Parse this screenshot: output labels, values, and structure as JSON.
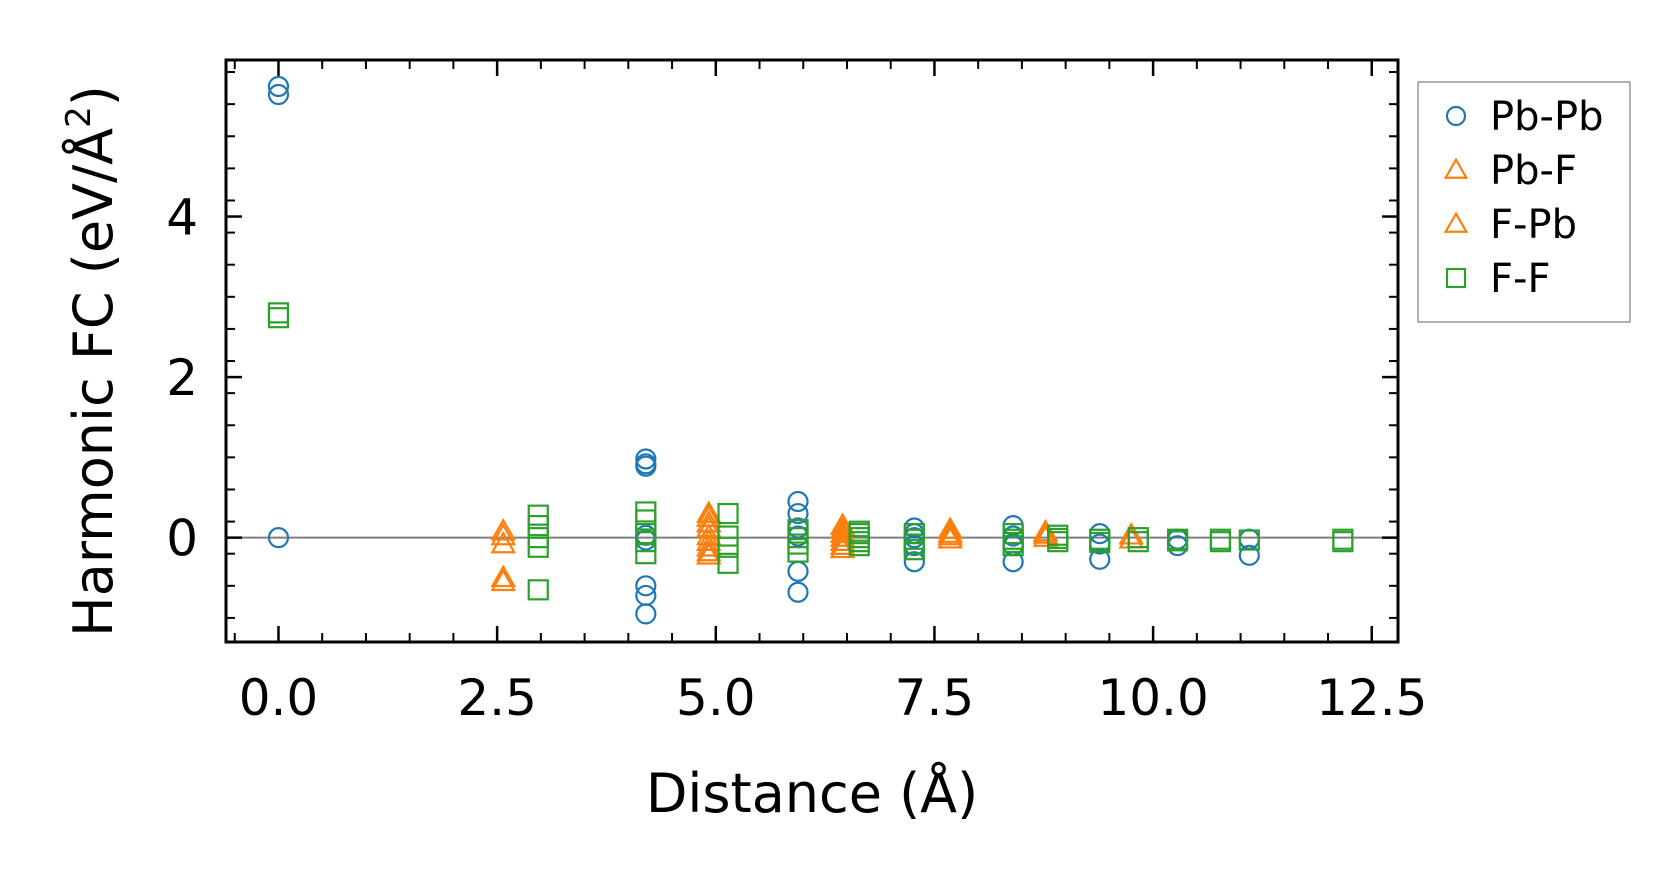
{
  "chart_data": {
    "type": "scatter",
    "title": "",
    "xlabel": "Distance (Å)",
    "ylabel_main": "Harmonic FC (eV/Å",
    "ylabel_sup": "2",
    "ylabel_end": ")",
    "xlim": [
      -0.6,
      12.8
    ],
    "ylim": [
      -1.3,
      5.95
    ],
    "xticks": [
      0.0,
      2.5,
      5.0,
      7.5,
      10.0,
      12.5
    ],
    "xtick_labels": [
      "0.0",
      "2.5",
      "5.0",
      "7.5",
      "10.0",
      "12.5"
    ],
    "yticks": [
      0,
      2,
      4
    ],
    "ytick_labels": [
      "0",
      "2",
      "4"
    ],
    "zero_line": true,
    "legend_position": "outside-right-top",
    "series": [
      {
        "name": "Pb-Pb",
        "marker": "circle",
        "color": "#1f77b4",
        "points": [
          [
            0.0,
            5.62
          ],
          [
            0.0,
            5.52
          ],
          [
            0.0,
            0.0
          ],
          [
            4.2,
            0.98
          ],
          [
            4.2,
            0.92
          ],
          [
            4.2,
            0.89
          ],
          [
            4.2,
            0.03
          ],
          [
            4.2,
            -0.03
          ],
          [
            4.2,
            -0.6
          ],
          [
            4.2,
            -0.72
          ],
          [
            4.2,
            -0.95
          ],
          [
            5.94,
            0.45
          ],
          [
            5.94,
            0.3
          ],
          [
            5.94,
            0.12
          ],
          [
            5.94,
            0.02
          ],
          [
            5.94,
            -0.42
          ],
          [
            5.94,
            -0.68
          ],
          [
            7.27,
            0.12
          ],
          [
            7.27,
            0.05
          ],
          [
            7.27,
            0.0
          ],
          [
            7.27,
            -0.1
          ],
          [
            7.27,
            -0.3
          ],
          [
            8.4,
            0.15
          ],
          [
            8.4,
            0.02
          ],
          [
            8.4,
            -0.1
          ],
          [
            8.4,
            -0.3
          ],
          [
            9.39,
            0.05
          ],
          [
            9.39,
            -0.08
          ],
          [
            9.39,
            -0.27
          ],
          [
            10.28,
            -0.02
          ],
          [
            10.28,
            -0.1
          ],
          [
            11.1,
            -0.02
          ],
          [
            11.1,
            -0.22
          ]
        ]
      },
      {
        "name": "Pb-F",
        "marker": "triangle",
        "color": "#ff7f0e",
        "points": [
          [
            2.57,
            0.08
          ],
          [
            2.57,
            -0.08
          ],
          [
            2.57,
            -0.5
          ],
          [
            4.92,
            0.25
          ],
          [
            4.92,
            0.12
          ],
          [
            4.92,
            0.02
          ],
          [
            4.92,
            -0.12
          ],
          [
            4.92,
            -0.22
          ],
          [
            6.45,
            0.15
          ],
          [
            6.45,
            0.05
          ],
          [
            6.45,
            -0.05
          ],
          [
            6.45,
            -0.14
          ],
          [
            7.68,
            0.1
          ],
          [
            7.68,
            0.02
          ],
          [
            8.77,
            0.07
          ],
          [
            8.77,
            0.0
          ],
          [
            9.75,
            0.03
          ]
        ]
      },
      {
        "name": "F-Pb",
        "marker": "triangle",
        "color": "#ff7f0e",
        "points": [
          [
            2.57,
            0.02
          ],
          [
            2.57,
            -0.55
          ],
          [
            4.92,
            0.3
          ],
          [
            4.92,
            0.18
          ],
          [
            4.92,
            -0.05
          ],
          [
            4.92,
            -0.18
          ],
          [
            6.45,
            0.1
          ],
          [
            6.45,
            0.0
          ],
          [
            6.45,
            -0.1
          ],
          [
            7.68,
            0.05
          ],
          [
            7.68,
            -0.02
          ],
          [
            8.77,
            0.04
          ],
          [
            9.75,
            -0.02
          ]
        ]
      },
      {
        "name": "F-F",
        "marker": "square",
        "color": "#2ca02c",
        "points": [
          [
            0.0,
            2.8
          ],
          [
            0.0,
            2.74
          ],
          [
            2.97,
            0.28
          ],
          [
            2.97,
            0.15
          ],
          [
            2.97,
            0.0
          ],
          [
            2.97,
            -0.12
          ],
          [
            2.97,
            -0.65
          ],
          [
            4.2,
            0.32
          ],
          [
            4.2,
            0.22
          ],
          [
            4.2,
            0.05
          ],
          [
            4.2,
            -0.05
          ],
          [
            4.2,
            -0.2
          ],
          [
            5.14,
            0.3
          ],
          [
            5.14,
            0.02
          ],
          [
            5.14,
            -0.12
          ],
          [
            5.14,
            -0.32
          ],
          [
            5.94,
            0.1
          ],
          [
            5.94,
            0.0
          ],
          [
            5.94,
            -0.08
          ],
          [
            5.94,
            -0.18
          ],
          [
            6.64,
            0.08
          ],
          [
            6.64,
            0.05
          ],
          [
            6.64,
            0.0
          ],
          [
            6.64,
            -0.05
          ],
          [
            6.64,
            -0.1
          ],
          [
            7.27,
            0.05
          ],
          [
            7.27,
            -0.02
          ],
          [
            7.27,
            -0.08
          ],
          [
            7.27,
            -0.15
          ],
          [
            8.4,
            0.05
          ],
          [
            8.4,
            -0.02
          ],
          [
            8.4,
            -0.06
          ],
          [
            8.4,
            -0.1
          ],
          [
            8.91,
            0.03
          ],
          [
            8.91,
            -0.01
          ],
          [
            8.91,
            -0.05
          ],
          [
            9.39,
            -0.02
          ],
          [
            9.39,
            -0.06
          ],
          [
            9.83,
            0.0
          ],
          [
            9.83,
            -0.05
          ],
          [
            10.28,
            -0.02
          ],
          [
            10.28,
            -0.04
          ],
          [
            10.77,
            -0.02
          ],
          [
            10.77,
            -0.05
          ],
          [
            11.1,
            -0.03
          ],
          [
            12.17,
            -0.02
          ],
          [
            12.17,
            -0.05
          ]
        ]
      }
    ]
  }
}
